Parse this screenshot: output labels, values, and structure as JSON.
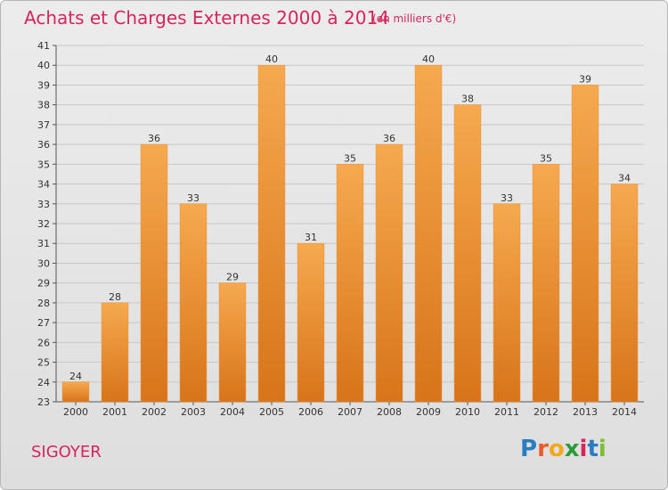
{
  "header": {
    "title": "Achats et Charges Externes 2000 à 2014",
    "subtitle": "(en milliers d'€)"
  },
  "footer": {
    "commune": "SIGOYER",
    "logo_letters": [
      "P",
      "r",
      "o",
      "x",
      "i",
      "t",
      "i"
    ],
    "logo_colors": [
      "#2a7dc2",
      "#e85b2a",
      "#f2a81d",
      "#2a9b3b",
      "#d6245c",
      "#2a7dc2",
      "#7bbf32"
    ]
  },
  "colors": {
    "bar_light": "#f6a94e",
    "bar_dark": "#d8741a",
    "accent": "#d6245c"
  },
  "chart_data": {
    "type": "bar",
    "title": "Achats et Charges Externes 2000 à 2014",
    "subtitle": "(en milliers d'€)",
    "categories": [
      "2000",
      "2001",
      "2002",
      "2003",
      "2004",
      "2005",
      "2006",
      "2007",
      "2008",
      "2009",
      "2010",
      "2011",
      "2012",
      "2013",
      "2014"
    ],
    "values": [
      24,
      28,
      36,
      33,
      29,
      40,
      31,
      35,
      36,
      40,
      38,
      33,
      35,
      39,
      34
    ],
    "ylim": [
      23,
      41
    ],
    "yticks": [
      23,
      24,
      25,
      26,
      27,
      28,
      29,
      30,
      31,
      32,
      33,
      34,
      35,
      36,
      37,
      38,
      39,
      40,
      41
    ],
    "grid": true,
    "xlabel": "",
    "ylabel": ""
  }
}
